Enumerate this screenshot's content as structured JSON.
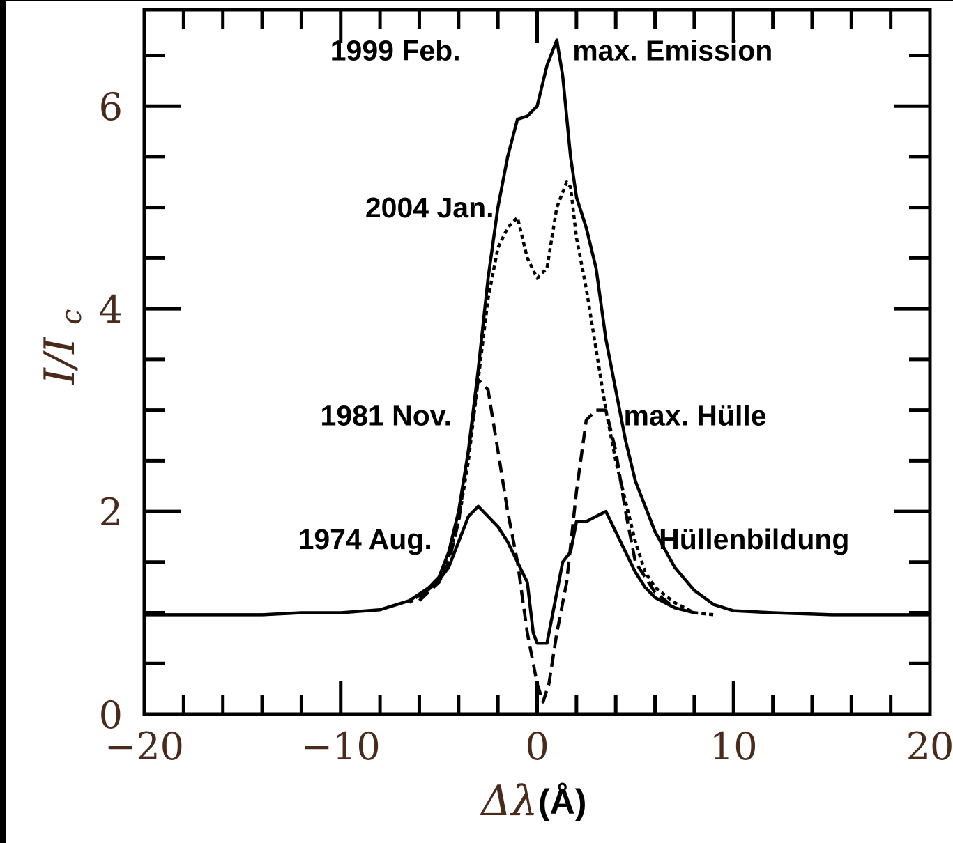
{
  "chart_data": {
    "type": "line",
    "xlabel_symbol": "Δλ",
    "xlabel_unit": "(Å)",
    "ylabel": "I/I",
    "ylabel_sub": "c",
    "xlim": [
      -20,
      20
    ],
    "ylim": [
      0,
      6.95
    ],
    "xticks": [
      -20,
      -10,
      0,
      10,
      20
    ],
    "xtick_labels": [
      "−20",
      "−10",
      "0",
      "10",
      "20"
    ],
    "yticks": [
      0,
      2,
      4,
      6
    ],
    "ytick_labels": [
      "0",
      "2",
      "4",
      "6"
    ],
    "grid": false,
    "series": [
      {
        "name": "1999 Feb.",
        "style": "solid",
        "x": [
          -20,
          -17,
          -14,
          -12,
          -10,
          -8,
          -6.5,
          -5.5,
          -5,
          -4.5,
          -4,
          -3.5,
          -3,
          -2.5,
          -2,
          -1.5,
          -1,
          -0.5,
          0,
          0.5,
          0.8,
          1,
          1.3,
          1.7,
          2,
          2.5,
          3,
          3.5,
          4,
          4.5,
          5,
          6,
          7,
          8,
          9,
          10,
          12,
          15,
          20
        ],
        "y": [
          0.98,
          0.98,
          0.98,
          1.0,
          1.0,
          1.03,
          1.12,
          1.25,
          1.35,
          1.6,
          2.0,
          2.6,
          3.4,
          4.3,
          5.0,
          5.5,
          5.87,
          5.9,
          6.0,
          6.4,
          6.55,
          6.65,
          6.3,
          5.5,
          5.1,
          4.8,
          4.4,
          3.7,
          3.2,
          2.7,
          2.3,
          1.8,
          1.45,
          1.22,
          1.08,
          1.02,
          1.0,
          0.98,
          0.98
        ]
      },
      {
        "name": "2004 Jan.",
        "style": "dotted",
        "x": [
          -6.5,
          -5.5,
          -5,
          -4.5,
          -4,
          -3.5,
          -3,
          -2.5,
          -2,
          -1.5,
          -1,
          -0.5,
          0,
          0.5,
          1,
          1.5,
          1.7,
          2,
          2.5,
          3,
          3.5,
          4,
          4.5,
          5,
          5.5,
          6,
          7,
          8,
          9
        ],
        "y": [
          1.1,
          1.25,
          1.35,
          1.55,
          1.9,
          2.5,
          3.3,
          4.1,
          4.6,
          4.8,
          4.9,
          4.5,
          4.3,
          4.4,
          5.0,
          5.25,
          5.2,
          4.7,
          4.2,
          3.6,
          3.0,
          2.5,
          2.1,
          1.7,
          1.4,
          1.25,
          1.1,
          1.0,
          0.98
        ]
      },
      {
        "name": "1981 Nov.",
        "style": "dashed",
        "x": [
          -6,
          -5,
          -4.5,
          -4,
          -3.5,
          -3,
          -2.5,
          -2,
          -1.5,
          -1,
          -0.5,
          0,
          0.3,
          0.6,
          1,
          1.5,
          2,
          2.5,
          3,
          3.5,
          4,
          4.5,
          5,
          6,
          7
        ],
        "y": [
          1.12,
          1.3,
          1.5,
          1.9,
          2.6,
          3.3,
          3.2,
          2.6,
          2.0,
          1.5,
          0.8,
          0.3,
          0.12,
          0.3,
          0.8,
          1.3,
          2.2,
          2.9,
          3.0,
          3.0,
          2.6,
          2.0,
          1.5,
          1.2,
          1.05
        ]
      },
      {
        "name": "1974 Aug.",
        "style": "solid",
        "x": [
          -6,
          -5,
          -4.5,
          -4,
          -3.5,
          -3,
          -2.5,
          -2,
          -1.5,
          -1,
          -0.5,
          -0.2,
          0,
          0.5,
          1,
          1.3,
          1.7,
          2,
          2.5,
          3,
          3.5,
          4,
          4.5,
          5,
          5.5,
          6,
          7,
          8
        ],
        "y": [
          1.15,
          1.32,
          1.45,
          1.7,
          1.95,
          2.05,
          1.95,
          1.85,
          1.7,
          1.5,
          1.3,
          0.8,
          0.7,
          0.7,
          1.2,
          1.5,
          1.6,
          1.9,
          1.9,
          1.95,
          2.0,
          1.8,
          1.6,
          1.4,
          1.25,
          1.15,
          1.05,
          1.0
        ]
      }
    ],
    "annotations": [
      {
        "text": "1999 Feb.",
        "x": -3.9,
        "y": 6.45,
        "anchor": "end"
      },
      {
        "text": "max. Emission",
        "x": 1.8,
        "y": 6.45,
        "anchor": "start"
      },
      {
        "text": "2004 Jan.",
        "x": -2.2,
        "y": 4.9,
        "anchor": "end"
      },
      {
        "text": "1981 Nov.",
        "x": -4.35,
        "y": 2.85,
        "anchor": "end"
      },
      {
        "text": "max. Hülle",
        "x": 4.4,
        "y": 2.85,
        "anchor": "start"
      },
      {
        "text": "1974 Aug.",
        "x": -5.35,
        "y": 1.63,
        "anchor": "end"
      },
      {
        "text": "Hüllenbildung",
        "x": 6.2,
        "y": 1.63,
        "anchor": "start"
      }
    ]
  }
}
